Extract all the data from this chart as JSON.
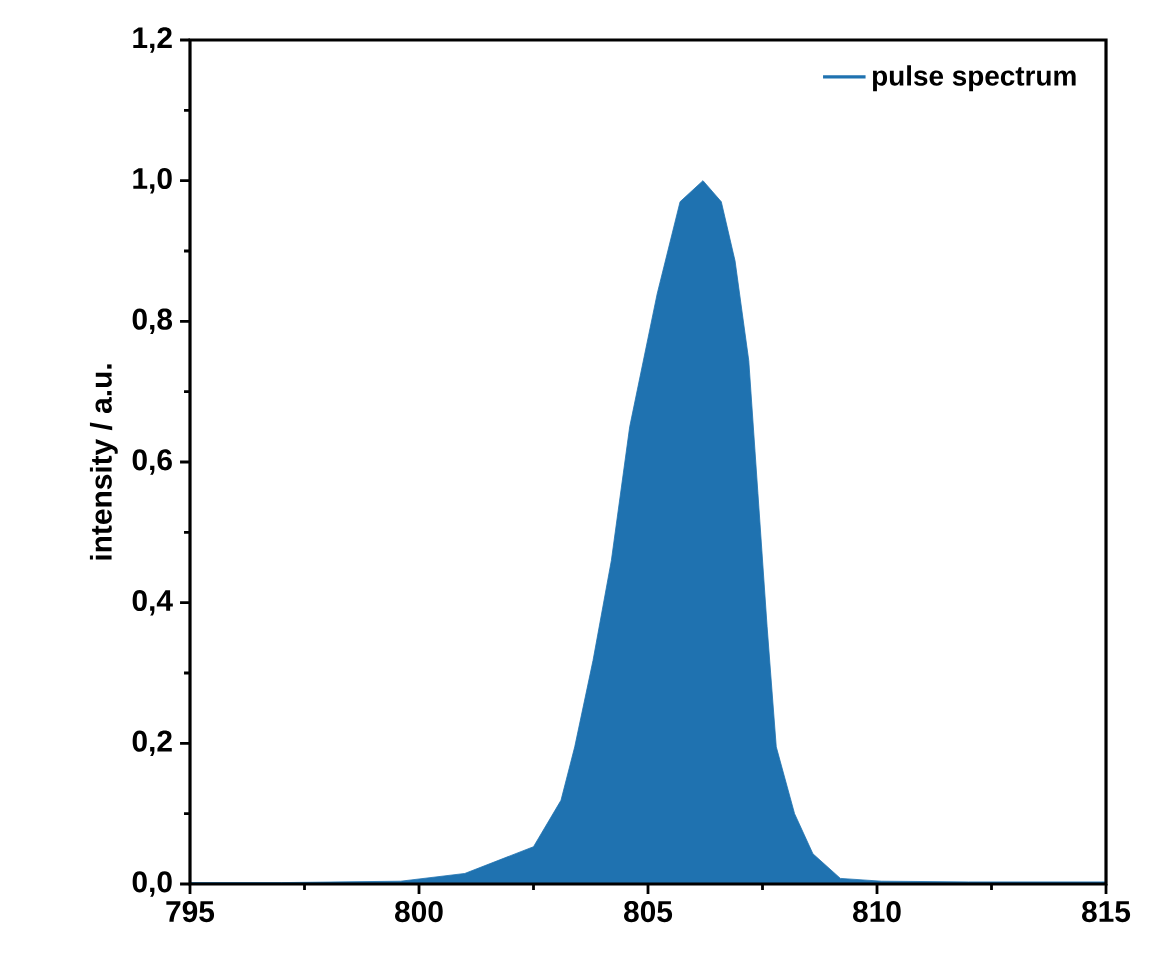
{
  "chart_data": {
    "type": "area",
    "ylabel": "intensity  /  a.u.",
    "xlim": [
      795,
      815
    ],
    "xticks": [
      795,
      800,
      805,
      810,
      815
    ],
    "ylim": [
      0,
      1.2
    ],
    "yticks": [
      {
        "value": 0,
        "label": "0,0"
      },
      {
        "value": 0.2,
        "label": "0,2"
      },
      {
        "value": 0.4,
        "label": "0,4"
      },
      {
        "value": 0.6,
        "label": "0,6"
      },
      {
        "value": 0.8,
        "label": "0,8"
      },
      {
        "value": 1.0,
        "label": "1,0"
      },
      {
        "value": 1.2,
        "label": "1,2"
      }
    ],
    "legend": "top right",
    "series": [
      {
        "name": "pulse spectrum",
        "color": "#1f72b0",
        "x": [
          795,
          797,
          799.6,
          801,
          802.5,
          803.1,
          803.4,
          803.8,
          804.2,
          804.6,
          805.2,
          805.7,
          806.2,
          806.6,
          806.9,
          807.2,
          807.4,
          807.6,
          807.8,
          808.2,
          808.6,
          809.2,
          810.1,
          812,
          815
        ],
        "values": [
          0.002,
          0.002,
          0.004,
          0.015,
          0.053,
          0.119,
          0.195,
          0.318,
          0.46,
          0.65,
          0.839,
          0.97,
          1.0,
          0.97,
          0.886,
          0.744,
          0.555,
          0.366,
          0.195,
          0.1,
          0.043,
          0.008,
          0.004,
          0.003,
          0.003
        ]
      }
    ]
  }
}
